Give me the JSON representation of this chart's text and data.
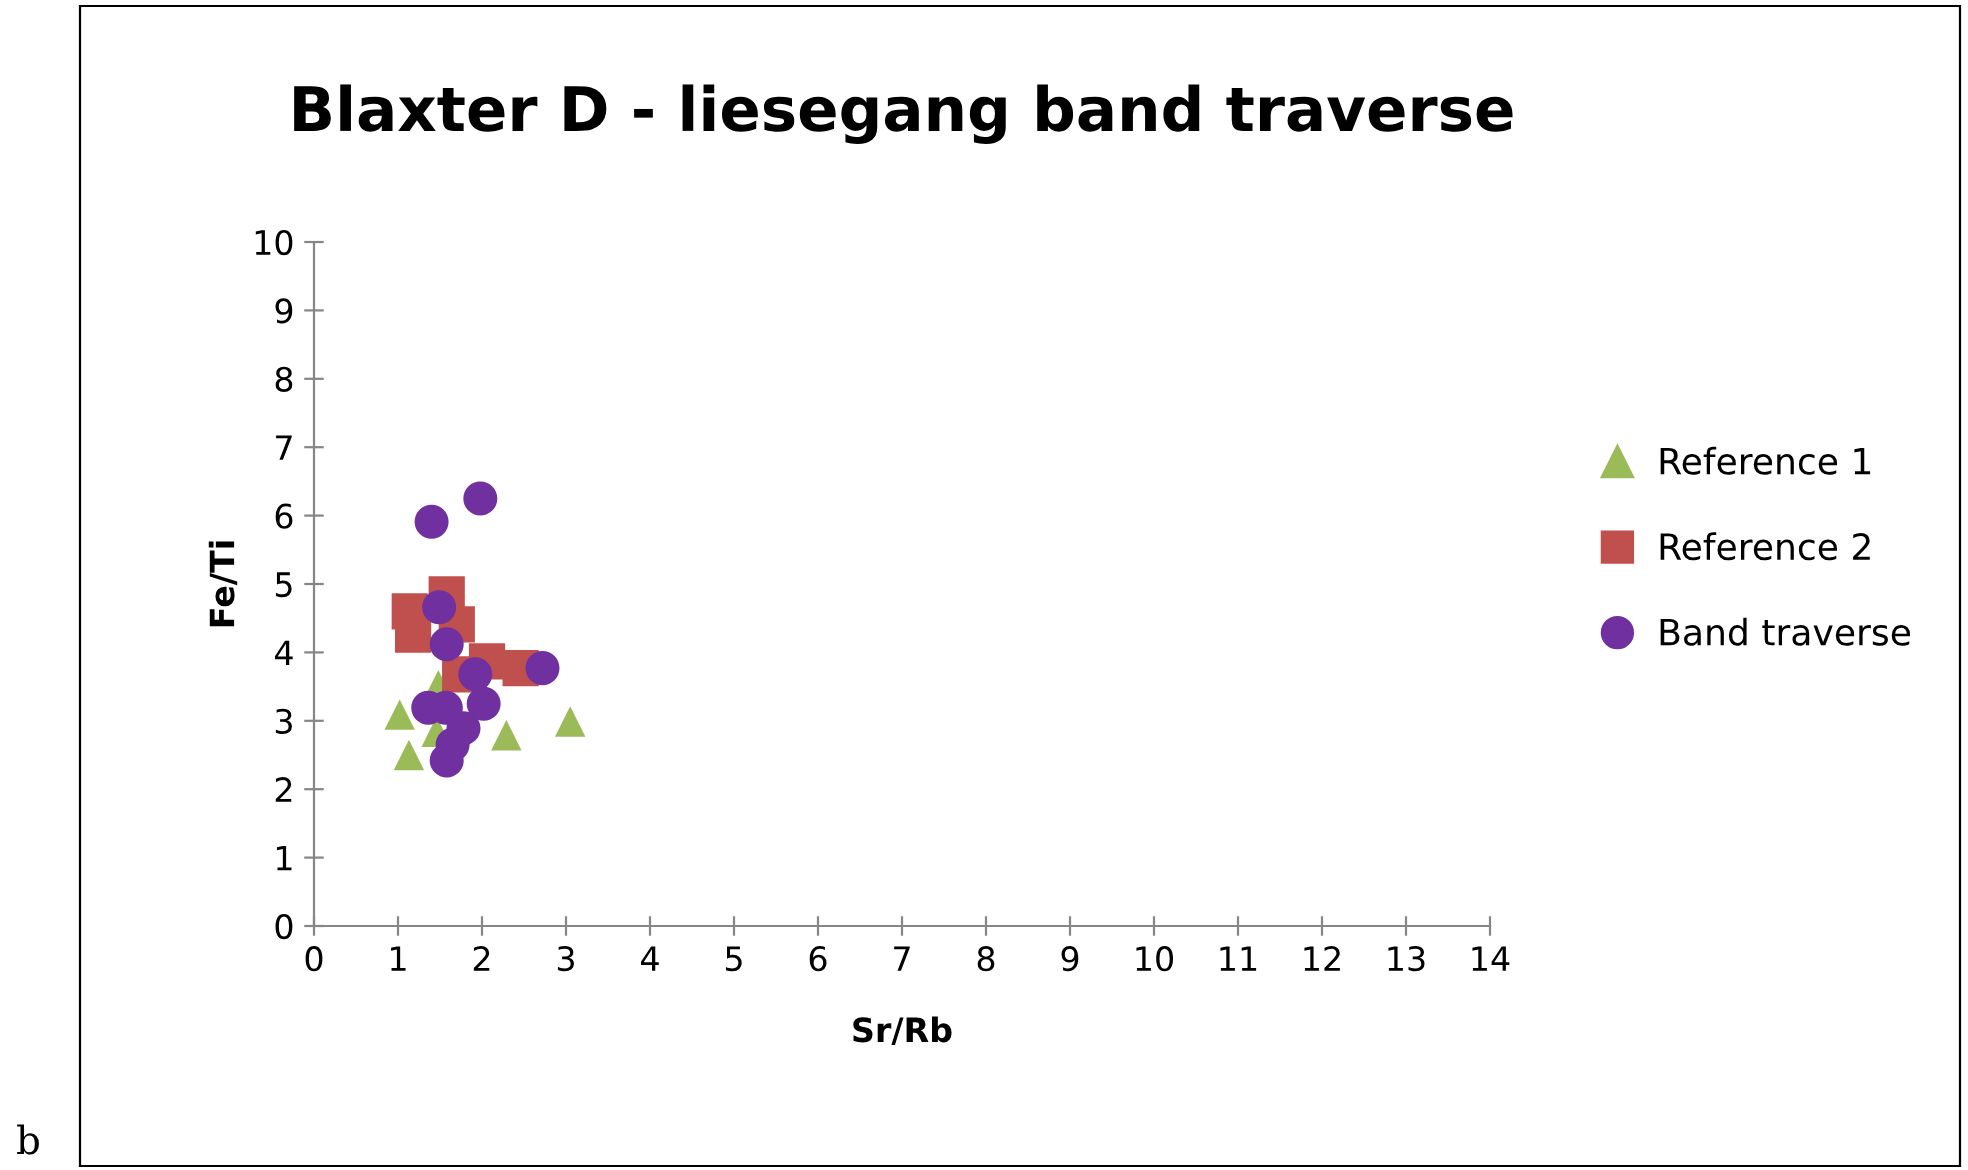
{
  "chart_data": {
    "type": "scatter",
    "title": "Blaxter D - liesegang band traverse",
    "xlabel": "Sr/Rb",
    "ylabel": "Fe/Ti",
    "xlim": [
      0,
      14
    ],
    "xticks": [
      0,
      1,
      2,
      3,
      4,
      5,
      6,
      7,
      8,
      9,
      10,
      11,
      12,
      13,
      14
    ],
    "ylim": [
      0,
      10
    ],
    "yticks": [
      0,
      1,
      2,
      3,
      4,
      5,
      6,
      7,
      8,
      9,
      10
    ],
    "grid": false,
    "legend": "right",
    "annotations": [
      "b"
    ],
    "series": [
      {
        "name": "Reference 1",
        "color": "#9bbb59",
        "marker": "triangle",
        "x": [
          1.02,
          1.13,
          1.48,
          1.46,
          2.29,
          3.05
        ],
        "values": [
          3.09,
          2.5,
          3.52,
          2.84,
          2.79,
          2.99
        ]
      },
      {
        "name": "Reference 2",
        "color": "#c0504d",
        "marker": "square",
        "x": [
          1.14,
          1.18,
          1.58,
          1.7,
          1.82,
          2.06,
          2.46,
          1.74
        ],
        "values": [
          4.6,
          4.26,
          4.85,
          4.41,
          null,
          3.87,
          3.77,
          3.68
        ]
      },
      {
        "name": "Band traverse",
        "color": "#7030a0",
        "marker": "circle",
        "x": [
          1.4,
          1.98,
          1.49,
          1.58,
          1.92,
          2.72,
          2.02,
          1.36,
          1.57,
          1.78,
          1.65,
          1.58
        ],
        "values": [
          5.91,
          6.25,
          4.66,
          4.12,
          3.68,
          3.77,
          3.25,
          3.19,
          3.19,
          2.89,
          2.65,
          2.42
        ]
      }
    ]
  }
}
